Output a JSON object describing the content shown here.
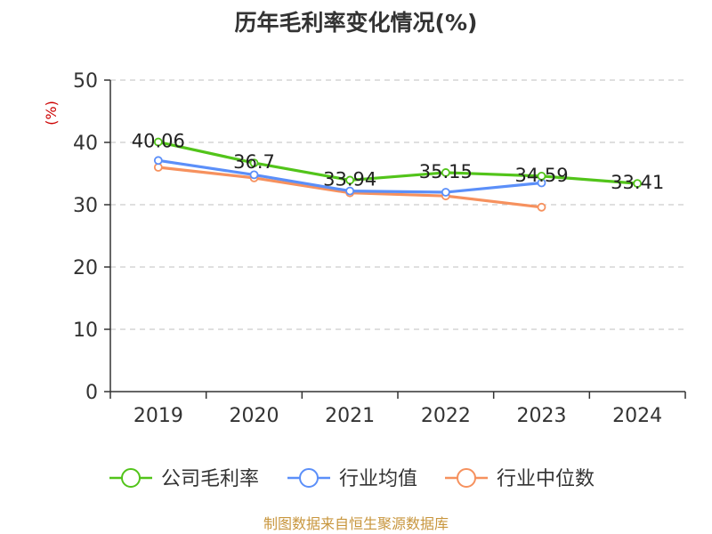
{
  "chart_data": {
    "type": "line",
    "title": "历年毛利率变化情况(%)",
    "ylabel": "(%)",
    "ylim": [
      0,
      50
    ],
    "yticks": [
      0,
      10,
      20,
      30,
      40,
      50
    ],
    "grid": true,
    "legend_position": "bottom",
    "categories": [
      "2019",
      "2020",
      "2021",
      "2022",
      "2023",
      "2024"
    ],
    "series": [
      {
        "name": "公司毛利率",
        "color": "#52c41a",
        "values": [
          40.06,
          36.7,
          33.94,
          35.15,
          34.59,
          33.41
        ],
        "labels": [
          "40.06",
          "36.7",
          "33.94",
          "35.15",
          "34.59",
          "33.41"
        ]
      },
      {
        "name": "行业均值",
        "color": "#5b8ff9",
        "values": [
          37.1,
          34.8,
          32.2,
          32.0,
          33.5,
          null
        ]
      },
      {
        "name": "行业中位数",
        "color": "#f6915e",
        "values": [
          36.0,
          34.3,
          31.9,
          31.4,
          29.6,
          null
        ]
      }
    ]
  },
  "colors": {
    "axis": "#333333",
    "grid": "#cccccc",
    "ylabel": "#cc0000",
    "source": "#c8963e"
  },
  "footer": {
    "source": "制图数据来自恒生聚源数据库"
  }
}
